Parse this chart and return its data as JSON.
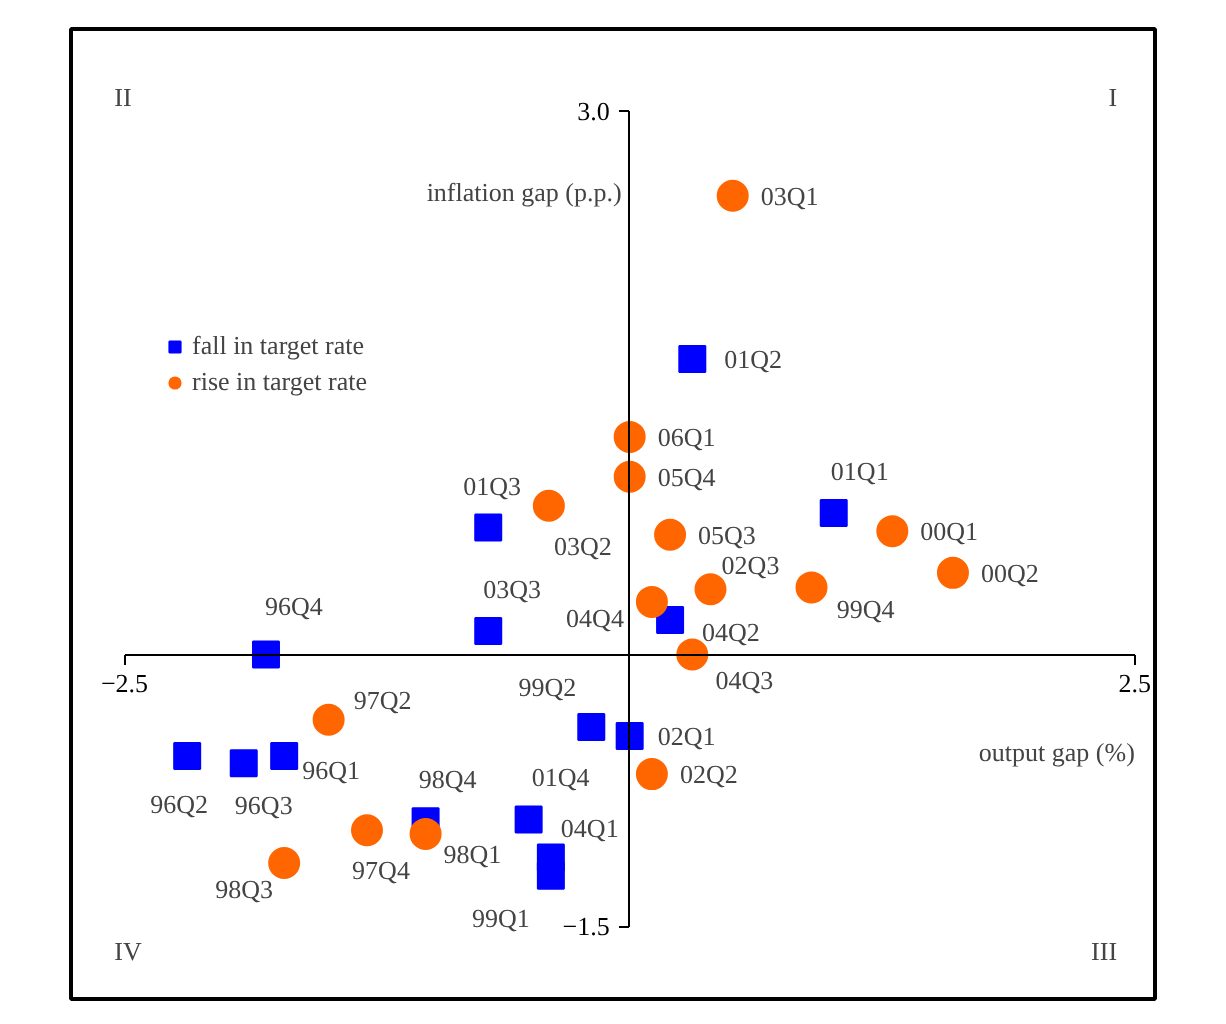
{
  "chart_data": {
    "type": "scatter",
    "xlabel": "output gap (%)",
    "ylabel": "inflation gap (p.p.)",
    "xlim": [
      -2.5,
      2.5
    ],
    "ylim": [
      -1.5,
      3.0
    ],
    "xticks": [
      -2.5,
      2.5
    ],
    "yticks": [
      {
        "value": 3.0,
        "label": "3.0"
      },
      -1.5
    ],
    "grid": false,
    "legend": "top left",
    "series": [
      {
        "name": "fall in target rate",
        "color": "#0000ff",
        "marker": "square",
        "x": [
          -1.8,
          -0.7,
          -0.7,
          0.31,
          1.01,
          0.2,
          -2.19,
          -1.91,
          -1.71,
          -1.01,
          -0.5,
          -0.39,
          -0.39,
          -0.19,
          0.0
        ],
        "values": [
          0.0,
          0.7,
          0.13,
          1.63,
          0.78,
          0.19,
          -0.56,
          -0.6,
          -0.56,
          -0.92,
          -0.91,
          -1.12,
          -1.22,
          -0.4,
          -0.45
        ]
      },
      {
        "name": "rise in target rate",
        "color": "#ff6600",
        "marker": "circle",
        "x": [
          0.51,
          -0.4,
          0.0,
          0.0,
          0.2,
          1.3,
          1.6,
          0.4,
          0.9,
          0.11,
          0.31,
          -1.49,
          -1.01,
          -1.3,
          -1.71,
          0.11
        ],
        "values": [
          2.53,
          0.82,
          1.2,
          0.98,
          0.66,
          0.68,
          0.45,
          0.36,
          0.37,
          0.29,
          0.0,
          -0.36,
          -0.99,
          -0.97,
          -1.15,
          -0.66
        ]
      }
    ],
    "annotations": [
      "II",
      "I",
      "IV",
      "III",
      {
        "text": "96Q4",
        "x": -1.8,
        "y": 0.0
      },
      {
        "text": "01Q3",
        "x": -0.7,
        "y": 0.7
      },
      {
        "text": "03Q3",
        "x": -0.7,
        "y": 0.13
      },
      {
        "text": "01Q2",
        "x": 0.31,
        "y": 1.63
      },
      {
        "text": "01Q1",
        "x": 1.01,
        "y": 0.78
      },
      {
        "text": "04Q2",
        "x": 0.2,
        "y": 0.19
      },
      {
        "text": "96Q2",
        "x": -2.19,
        "y": -0.56
      },
      {
        "text": "96Q3",
        "x": -1.91,
        "y": -0.6
      },
      {
        "text": "96Q1",
        "x": -1.71,
        "y": -0.56
      },
      {
        "text": "98Q4",
        "x": -1.01,
        "y": -0.92
      },
      {
        "text": "01Q4",
        "x": -0.5,
        "y": -0.91
      },
      {
        "text": "04Q1",
        "x": -0.39,
        "y": -1.12
      },
      {
        "text": "99Q1",
        "x": -0.39,
        "y": -1.22
      },
      {
        "text": "99Q2",
        "x": -0.19,
        "y": -0.4
      },
      {
        "text": "02Q1",
        "x": 0.0,
        "y": -0.45
      },
      {
        "text": "03Q1",
        "x": 0.51,
        "y": 2.53
      },
      {
        "text": "03Q2",
        "x": -0.4,
        "y": 0.82
      },
      {
        "text": "06Q1",
        "x": 0.0,
        "y": 1.2
      },
      {
        "text": "05Q4",
        "x": 0.0,
        "y": 0.98
      },
      {
        "text": "05Q3",
        "x": 0.2,
        "y": 0.66
      },
      {
        "text": "00Q1",
        "x": 1.3,
        "y": 0.68
      },
      {
        "text": "00Q2",
        "x": 1.6,
        "y": 0.45
      },
      {
        "text": "02Q3",
        "x": 0.4,
        "y": 0.36
      },
      {
        "text": "99Q4",
        "x": 0.9,
        "y": 0.37
      },
      {
        "text": "04Q4",
        "x": 0.11,
        "y": 0.29
      },
      {
        "text": "04Q3",
        "x": 0.31,
        "y": 0.0
      },
      {
        "text": "97Q2",
        "x": -1.49,
        "y": -0.36
      },
      {
        "text": "98Q1",
        "x": -1.01,
        "y": -0.99
      },
      {
        "text": "97Q4",
        "x": -1.3,
        "y": -0.97
      },
      {
        "text": "98Q3",
        "x": -1.71,
        "y": -1.15
      },
      {
        "text": "02Q2",
        "x": 0.11,
        "y": -0.66
      }
    ]
  }
}
